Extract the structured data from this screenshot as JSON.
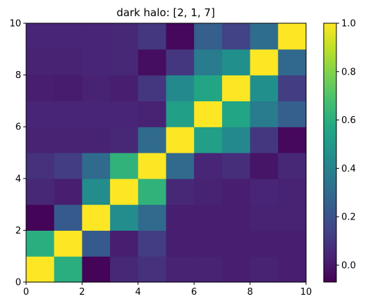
{
  "chart_data": {
    "type": "heatmap",
    "title": "dark halo: [2, 1, 7]",
    "xlabel": "",
    "ylabel": "",
    "xlim": [
      0,
      10
    ],
    "ylim": [
      0,
      10
    ],
    "x_ticks": [
      "0",
      "2",
      "4",
      "6",
      "8",
      "10"
    ],
    "y_ticks": [
      "0",
      "2",
      "4",
      "6",
      "8",
      "10"
    ],
    "colormap": "viridis",
    "vmin": -0.07,
    "vmax": 1.0,
    "colorbar_ticks": [
      "0.0",
      "0.2",
      "0.4",
      "0.6",
      "0.8",
      "1.0"
    ],
    "grid": false,
    "rows_bottom_to_top": [
      [
        1.0,
        0.6,
        -0.06,
        0.05,
        0.08,
        0.03,
        0.03,
        0.02,
        0.03,
        0.02
      ],
      [
        0.6,
        1.0,
        0.23,
        0.02,
        0.12,
        0.02,
        0.02,
        0.02,
        0.02,
        0.02
      ],
      [
        -0.06,
        0.23,
        1.0,
        0.45,
        0.3,
        0.02,
        0.02,
        0.02,
        0.03,
        0.03
      ],
      [
        0.05,
        0.02,
        0.45,
        1.0,
        0.62,
        0.05,
        0.03,
        0.02,
        0.04,
        0.03
      ],
      [
        0.08,
        0.12,
        0.3,
        0.62,
        1.0,
        0.3,
        0.04,
        0.07,
        -0.01,
        0.05
      ],
      [
        0.03,
        0.03,
        0.03,
        0.05,
        0.3,
        1.0,
        0.53,
        0.43,
        0.1,
        -0.05
      ],
      [
        0.04,
        0.04,
        0.04,
        0.04,
        0.03,
        0.53,
        1.0,
        0.56,
        0.37,
        0.25
      ],
      [
        0.02,
        0.01,
        0.03,
        0.02,
        0.1,
        0.43,
        0.56,
        1.0,
        0.46,
        0.12
      ],
      [
        0.03,
        0.03,
        0.04,
        0.05,
        -0.03,
        0.1,
        0.37,
        0.46,
        1.0,
        0.29
      ],
      [
        0.04,
        0.04,
        0.04,
        0.05,
        0.1,
        -0.05,
        0.25,
        0.14,
        0.31,
        1.0
      ]
    ]
  }
}
